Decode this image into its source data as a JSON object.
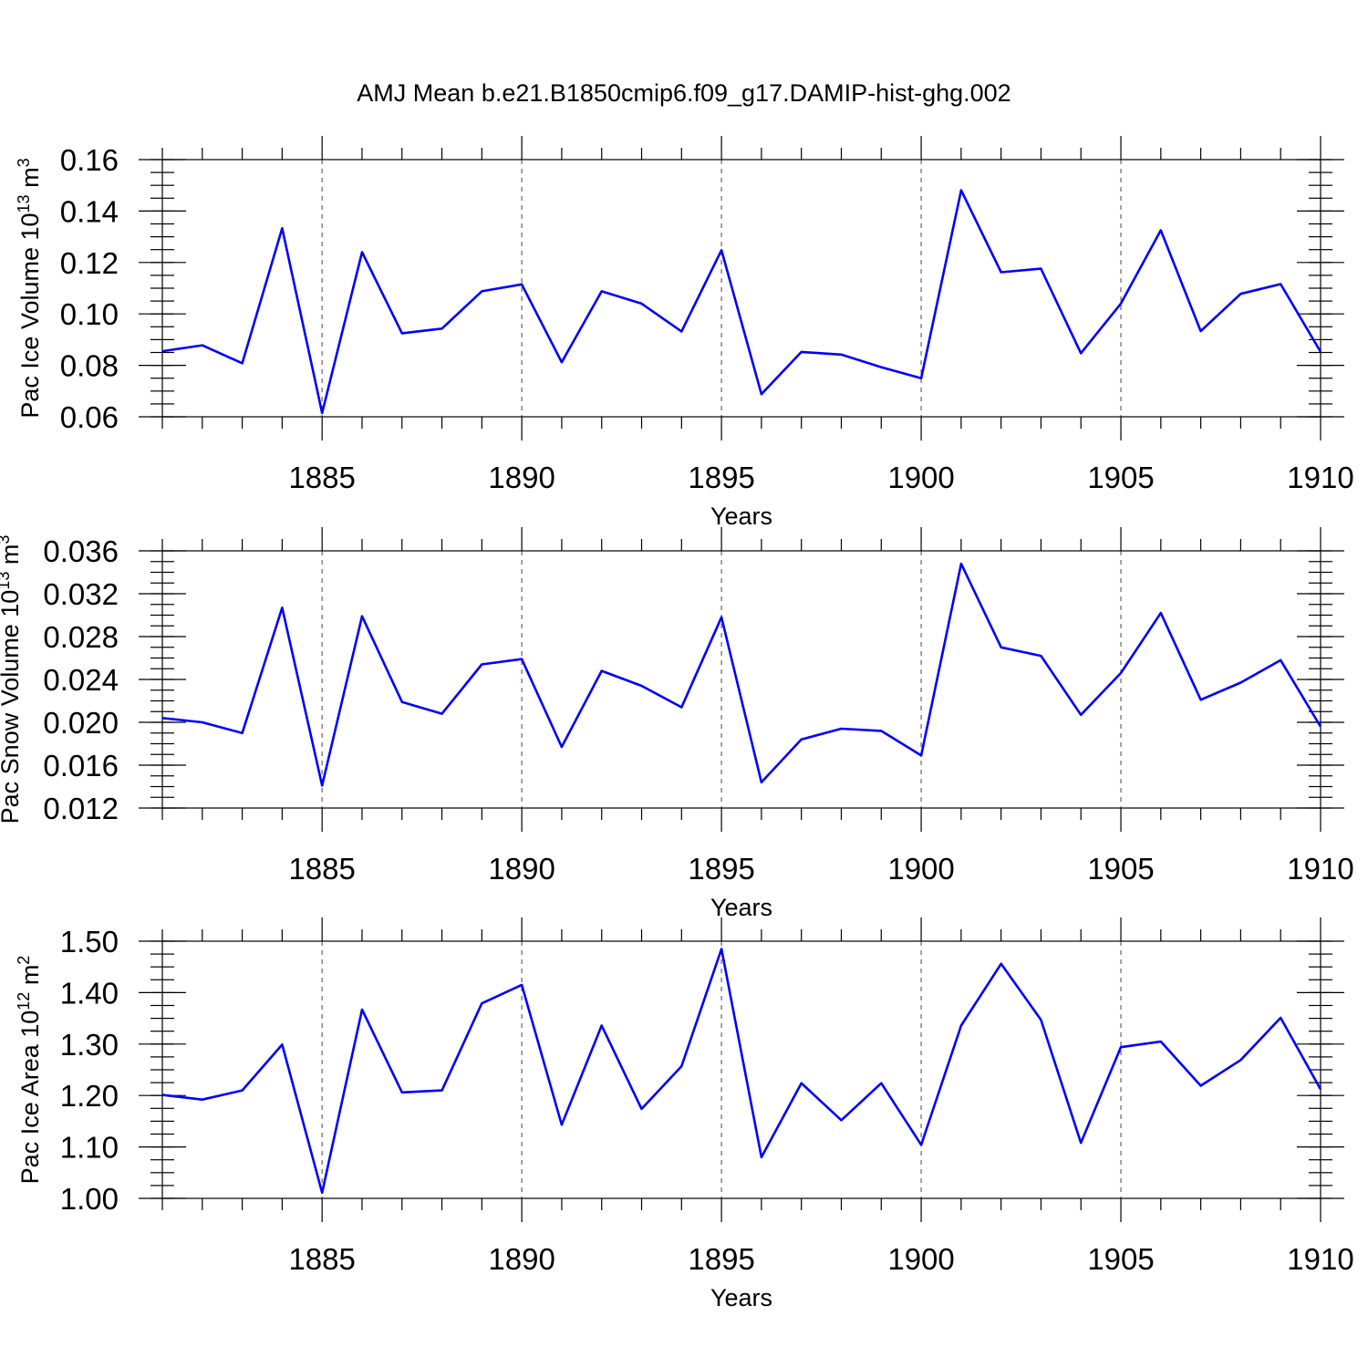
{
  "title": "AMJ Mean b.e21.B1850cmip6.f09_g17.DAMIP-hist-ghg.002",
  "colors": {
    "line": "#0000ff",
    "axis": "#000000",
    "grid": "#666666"
  },
  "chart_data": [
    {
      "type": "line",
      "xlabel": "Years",
      "ylabel": {
        "prefix": "Pac Ice Volume 10",
        "exponent": "13",
        "unit": " m",
        "unit_exponent": "3"
      },
      "xlim": [
        1881,
        1910
      ],
      "ylim": [
        0.06,
        0.16
      ],
      "xticks": [
        1885,
        1890,
        1895,
        1900,
        1905,
        1910
      ],
      "yticks": [
        0.06,
        0.08,
        0.1,
        0.12,
        0.14,
        0.16
      ],
      "ytick_labels": [
        "0.06",
        "0.08",
        "0.10",
        "0.12",
        "0.14",
        "0.16"
      ],
      "y_minor_step": 0.005,
      "grid": "vertical-dashed",
      "x": [
        1881,
        1882,
        1883,
        1884,
        1885,
        1886,
        1887,
        1888,
        1889,
        1890,
        1891,
        1892,
        1893,
        1894,
        1895,
        1896,
        1897,
        1898,
        1899,
        1900,
        1901,
        1902,
        1903,
        1904,
        1905,
        1906,
        1907,
        1908,
        1909,
        1910
      ],
      "values": [
        0.0855,
        0.0878,
        0.0808,
        0.1333,
        0.0615,
        0.124,
        0.0925,
        0.0943,
        0.1088,
        0.1115,
        0.0812,
        0.1088,
        0.104,
        0.0932,
        0.1248,
        0.0688,
        0.0852,
        0.0842,
        0.0793,
        0.075,
        0.1481,
        0.1162,
        0.1176,
        0.0847,
        0.104,
        0.1325,
        0.0933,
        0.1078,
        0.1116,
        0.0853
      ]
    },
    {
      "type": "line",
      "xlabel": "Years",
      "ylabel": {
        "prefix": "Pac Snow Volume 10",
        "exponent": "13",
        "unit": " m",
        "unit_exponent": "3"
      },
      "xlim": [
        1881,
        1910
      ],
      "ylim": [
        0.012,
        0.036
      ],
      "xticks": [
        1885,
        1890,
        1895,
        1900,
        1905,
        1910
      ],
      "yticks": [
        0.012,
        0.016,
        0.02,
        0.024,
        0.028,
        0.032,
        0.036
      ],
      "ytick_labels": [
        "0.012",
        "0.016",
        "0.020",
        "0.024",
        "0.028",
        "0.032",
        "0.036"
      ],
      "y_minor_step": 0.001,
      "grid": "vertical-dashed",
      "x": [
        1881,
        1882,
        1883,
        1884,
        1885,
        1886,
        1887,
        1888,
        1889,
        1890,
        1891,
        1892,
        1893,
        1894,
        1895,
        1896,
        1897,
        1898,
        1899,
        1900,
        1901,
        1902,
        1903,
        1904,
        1905,
        1906,
        1907,
        1908,
        1909,
        1910
      ],
      "values": [
        0.0204,
        0.02,
        0.019,
        0.0307,
        0.0141,
        0.0299,
        0.0219,
        0.0208,
        0.0254,
        0.0259,
        0.0177,
        0.0248,
        0.0234,
        0.0214,
        0.0298,
        0.0144,
        0.0184,
        0.0194,
        0.0192,
        0.0169,
        0.0348,
        0.027,
        0.0262,
        0.0207,
        0.0246,
        0.0302,
        0.0221,
        0.0237,
        0.0258,
        0.0196
      ]
    },
    {
      "type": "line",
      "xlabel": "Years",
      "ylabel": {
        "prefix": "Pac Ice Area 10",
        "exponent": "12",
        "unit": " m",
        "unit_exponent": "2"
      },
      "xlim": [
        1881,
        1910
      ],
      "ylim": [
        1.0,
        1.5
      ],
      "xticks": [
        1885,
        1890,
        1895,
        1900,
        1905,
        1910
      ],
      "yticks": [
        1.0,
        1.1,
        1.2,
        1.3,
        1.4,
        1.5
      ],
      "ytick_labels": [
        "1.00",
        "1.10",
        "1.20",
        "1.30",
        "1.40",
        "1.50"
      ],
      "y_minor_step": 0.025,
      "grid": "vertical-dashed",
      "x": [
        1881,
        1882,
        1883,
        1884,
        1885,
        1886,
        1887,
        1888,
        1889,
        1890,
        1891,
        1892,
        1893,
        1894,
        1895,
        1896,
        1897,
        1898,
        1899,
        1900,
        1901,
        1902,
        1903,
        1904,
        1905,
        1906,
        1907,
        1908,
        1909,
        1910
      ],
      "values": [
        1.201,
        1.192,
        1.21,
        1.299,
        1.011,
        1.367,
        1.206,
        1.21,
        1.379,
        1.415,
        1.143,
        1.336,
        1.174,
        1.257,
        1.485,
        1.08,
        1.224,
        1.152,
        1.224,
        1.104,
        1.336,
        1.456,
        1.347,
        1.108,
        1.294,
        1.305,
        1.219,
        1.269,
        1.351,
        1.212
      ]
    }
  ]
}
